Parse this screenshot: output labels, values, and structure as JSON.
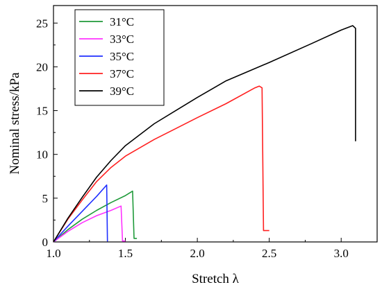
{
  "chart_data": {
    "type": "line",
    "xlabel": "Stretch λ",
    "ylabel": "Nominal stress/kPa",
    "xlim": [
      1.0,
      3.25
    ],
    "ylim": [
      0,
      27
    ],
    "xticks": [
      1.0,
      1.5,
      2.0,
      2.5,
      3.0
    ],
    "xtick_labels": [
      "1.0",
      "1.5",
      "2.0",
      "2.5",
      "3.0"
    ],
    "yticks": [
      0,
      5,
      10,
      15,
      20,
      25
    ],
    "ytick_labels": [
      "0",
      "5",
      "10",
      "15",
      "20",
      "25"
    ],
    "grid": false,
    "legend_position": "top-left",
    "series": [
      {
        "name": "31°C",
        "color": "#1f9a3a",
        "points": [
          [
            1.0,
            0
          ],
          [
            1.1,
            1.4
          ],
          [
            1.2,
            2.6
          ],
          [
            1.3,
            3.6
          ],
          [
            1.4,
            4.5
          ],
          [
            1.5,
            5.3
          ],
          [
            1.55,
            5.8
          ],
          [
            1.56,
            0.4
          ],
          [
            1.58,
            0.4
          ]
        ]
      },
      {
        "name": "33°C",
        "color": "#ff33ff",
        "points": [
          [
            1.0,
            0
          ],
          [
            1.1,
            1.2
          ],
          [
            1.2,
            2.2
          ],
          [
            1.3,
            3.0
          ],
          [
            1.4,
            3.6
          ],
          [
            1.47,
            4.1
          ],
          [
            1.48,
            0.1
          ],
          [
            1.5,
            0.1
          ]
        ]
      },
      {
        "name": "35°C",
        "color": "#1f2fff",
        "points": [
          [
            1.0,
            0
          ],
          [
            1.1,
            1.8
          ],
          [
            1.2,
            3.5
          ],
          [
            1.3,
            5.2
          ],
          [
            1.37,
            6.5
          ],
          [
            1.375,
            0.05
          ]
        ]
      },
      {
        "name": "37°C",
        "color": "#ff2020",
        "points": [
          [
            1.0,
            0
          ],
          [
            1.1,
            2.6
          ],
          [
            1.2,
            4.8
          ],
          [
            1.3,
            6.9
          ],
          [
            1.4,
            8.5
          ],
          [
            1.5,
            9.8
          ],
          [
            1.7,
            11.7
          ],
          [
            2.0,
            14.2
          ],
          [
            2.2,
            15.8
          ],
          [
            2.4,
            17.6
          ],
          [
            2.43,
            17.8
          ],
          [
            2.45,
            17.6
          ],
          [
            2.46,
            1.3
          ],
          [
            2.5,
            1.3
          ]
        ]
      },
      {
        "name": "39°C",
        "color": "#000000",
        "points": [
          [
            1.0,
            0
          ],
          [
            1.1,
            2.7
          ],
          [
            1.2,
            5.1
          ],
          [
            1.3,
            7.4
          ],
          [
            1.4,
            9.3
          ],
          [
            1.5,
            11.0
          ],
          [
            1.7,
            13.5
          ],
          [
            2.0,
            16.5
          ],
          [
            2.2,
            18.4
          ],
          [
            2.5,
            20.5
          ],
          [
            2.8,
            22.7
          ],
          [
            3.0,
            24.2
          ],
          [
            3.08,
            24.7
          ],
          [
            3.1,
            24.4
          ],
          [
            3.1,
            11.5
          ]
        ]
      }
    ]
  }
}
